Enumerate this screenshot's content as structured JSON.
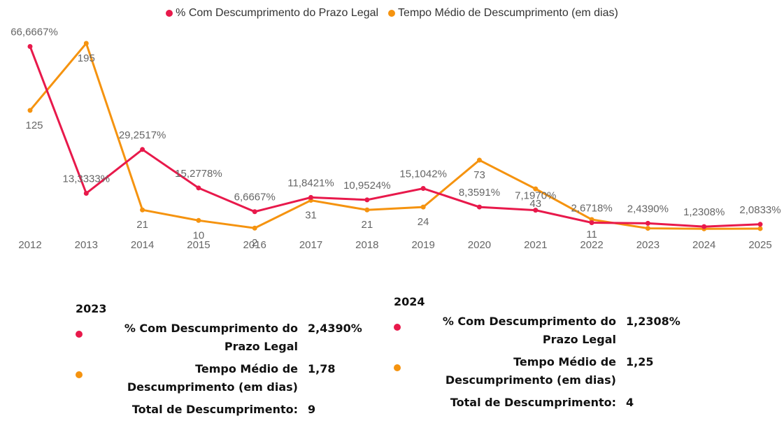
{
  "chart_data": {
    "type": "line",
    "categories": [
      "2012",
      "2013",
      "2014",
      "2015",
      "2016",
      "2017",
      "2018",
      "2019",
      "2020",
      "2021",
      "2022",
      "2023",
      "2024",
      "2025"
    ],
    "series": [
      {
        "name": "% Com Descumprimento do Prazo Legal",
        "color": "#e8194b",
        "axis": "y",
        "values": [
          66.6667,
          13.3333,
          29.2517,
          15.2778,
          6.6667,
          11.8421,
          10.9524,
          15.1042,
          8.3591,
          7.197,
          2.6718,
          2.439,
          1.2308,
          2.0833
        ],
        "value_labels": [
          "66,6667%",
          "13,3333%",
          "29,2517%",
          "15,2778%",
          "6,6667%",
          "11,8421%",
          "10,9524%",
          "15,1042%",
          "8,3591%",
          "7,1970%",
          "2,6718%",
          "2,4390%",
          "1,2308%",
          "2,0833%"
        ]
      },
      {
        "name": "Tempo Médio de Descumprimento (em dias)",
        "color": "#f5930f",
        "axis": "y2",
        "values": [
          125,
          195,
          21,
          10,
          2,
          31,
          21,
          24,
          73,
          43,
          11,
          1.78,
          1.25,
          1.5
        ],
        "value_labels": [
          "125",
          "195",
          "21",
          "10",
          "2",
          "31",
          "21",
          "24",
          "73",
          "43",
          "11",
          null,
          null,
          null
        ]
      }
    ],
    "ylim": [
      0,
      67.8
    ],
    "y2lim": [
      0,
      195
    ]
  },
  "tooltips": [
    {
      "title": "2023",
      "rows": [
        {
          "label": "% Com Descumprimento do Prazo Legal",
          "value": "2,4390%"
        },
        {
          "label": "Tempo Médio de Descumprimento (em dias)",
          "value": "1,78"
        },
        {
          "label": "Total de Descumprimento:",
          "value": "9"
        }
      ]
    },
    {
      "title": "2024",
      "rows": [
        {
          "label": "% Com Descumprimento do Prazo Legal",
          "value": "1,2308%"
        },
        {
          "label": "Tempo Médio de Descumprimento (em dias)",
          "value": "1,25"
        },
        {
          "label": "Total de Descumprimento:",
          "value": "4"
        }
      ]
    }
  ]
}
